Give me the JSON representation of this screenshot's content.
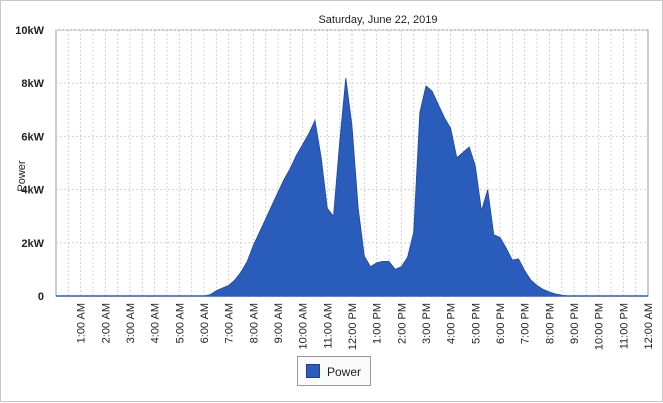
{
  "chart_data": {
    "type": "area",
    "title": "Saturday, June 22, 2019",
    "xlabel": "",
    "ylabel": "Power",
    "y_ticks": [
      "0",
      "2kW",
      "4kW",
      "6kW",
      "8kW",
      "10kW"
    ],
    "y_tick_values": [
      0,
      2,
      4,
      6,
      8,
      10
    ],
    "ylim": [
      0,
      10
    ],
    "y_unit": "kW",
    "x_ticks": [
      "1:00 AM",
      "2:00 AM",
      "3:00 AM",
      "4:00 AM",
      "5:00 AM",
      "6:00 AM",
      "7:00 AM",
      "8:00 AM",
      "9:00 AM",
      "10:00 AM",
      "11:00 AM",
      "12:00 PM",
      "1:00 PM",
      "2:00 PM",
      "3:00 PM",
      "4:00 PM",
      "5:00 PM",
      "6:00 PM",
      "7:00 PM",
      "8:00 PM",
      "9:00 PM",
      "10:00 PM",
      "11:00 PM",
      "12:00 AM"
    ],
    "x_tick_hours": [
      1,
      2,
      3,
      4,
      5,
      6,
      7,
      8,
      9,
      10,
      11,
      12,
      13,
      14,
      15,
      16,
      17,
      18,
      19,
      20,
      21,
      22,
      23,
      24
    ],
    "xlim_hours": [
      0,
      24
    ],
    "grid": true,
    "legend_position": "bottom-center",
    "series": [
      {
        "name": "Power",
        "color": "#2a5cbc",
        "x_hours": [
          0,
          6.0,
          6.25,
          6.5,
          6.75,
          7.0,
          7.25,
          7.5,
          7.75,
          8.0,
          8.25,
          8.5,
          8.75,
          9.0,
          9.25,
          9.5,
          9.75,
          10.0,
          10.25,
          10.5,
          10.75,
          11.0,
          11.25,
          11.5,
          11.75,
          12.0,
          12.25,
          12.5,
          12.75,
          13.0,
          13.25,
          13.5,
          13.75,
          14.0,
          14.25,
          14.5,
          14.75,
          15.0,
          15.25,
          15.5,
          15.75,
          16.0,
          16.25,
          16.5,
          16.75,
          17.0,
          17.25,
          17.5,
          17.75,
          18.0,
          18.25,
          18.5,
          18.75,
          19.0,
          19.25,
          19.5,
          19.75,
          20.0,
          20.25,
          20.5,
          20.75,
          21.0,
          21.25,
          21.5,
          22,
          23,
          24
        ],
        "values_kw": [
          0,
          0,
          0.05,
          0.2,
          0.3,
          0.4,
          0.6,
          0.9,
          1.3,
          1.9,
          2.4,
          2.9,
          3.4,
          3.9,
          4.4,
          4.8,
          5.3,
          5.7,
          6.1,
          6.6,
          5.2,
          3.3,
          3.0,
          5.8,
          8.2,
          6.4,
          3.3,
          1.5,
          1.1,
          1.25,
          1.3,
          1.3,
          1.0,
          1.1,
          1.45,
          2.4,
          6.9,
          7.9,
          7.7,
          7.2,
          6.7,
          6.3,
          5.2,
          5.4,
          5.6,
          4.9,
          3.2,
          4.0,
          2.3,
          2.2,
          1.8,
          1.35,
          1.4,
          0.95,
          0.6,
          0.4,
          0.25,
          0.15,
          0.08,
          0.03,
          0.0,
          0.0,
          0,
          0,
          0,
          0,
          0
        ]
      }
    ]
  }
}
